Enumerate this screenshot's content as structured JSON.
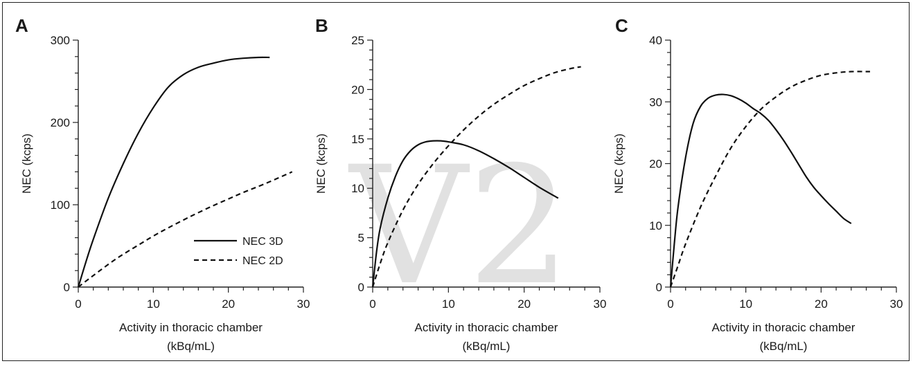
{
  "watermark": "V2",
  "legend": {
    "items": [
      {
        "label": "NEC 3D",
        "style": "solid"
      },
      {
        "label": "NEC 2D",
        "style": "dashed"
      }
    ]
  },
  "chart_data": [
    {
      "type": "line",
      "panel_label": "A",
      "xlabel": "Activity in thoracic chamber",
      "xlabel_unit": "(kBq/mL)",
      "ylabel": "NEC (kcps)",
      "xlim": [
        0,
        30
      ],
      "ylim": [
        0,
        300
      ],
      "x_ticks": [
        0,
        10,
        20,
        30
      ],
      "y_ticks": [
        0,
        100,
        200,
        300
      ],
      "legend": "right",
      "series": [
        {
          "name": "NEC 3D",
          "style": "solid",
          "x": [
            0,
            1,
            2,
            4,
            6,
            8,
            10,
            12,
            14,
            16,
            18,
            20,
            22,
            24,
            25.5
          ],
          "y": [
            0,
            30,
            58,
            108,
            150,
            187,
            218,
            243,
            258,
            267,
            272,
            276,
            278,
            279,
            279
          ]
        },
        {
          "name": "NEC 2D",
          "style": "dashed",
          "x": [
            0,
            2,
            5,
            8,
            10,
            12,
            15,
            18,
            20,
            22,
            25,
            28.5
          ],
          "y": [
            0,
            14,
            34,
            51,
            62,
            72,
            86,
            99,
            107,
            115,
            126,
            140
          ]
        }
      ]
    },
    {
      "type": "line",
      "panel_label": "B",
      "xlabel": "Activity in thoracic chamber",
      "xlabel_unit": "(kBq/mL)",
      "ylabel": "NEC (kcps)",
      "xlim": [
        0,
        30
      ],
      "ylim": [
        0,
        25
      ],
      "x_ticks": [
        0,
        10,
        20,
        30
      ],
      "y_ticks": [
        0,
        5,
        10,
        15,
        20,
        25
      ],
      "series": [
        {
          "name": "NEC 3D",
          "style": "solid",
          "x": [
            0,
            0.5,
            1,
            2,
            3,
            4,
            5,
            6,
            7,
            8,
            9,
            10,
            12,
            14,
            16,
            18,
            20,
            22,
            24.5
          ],
          "y": [
            0,
            3.5,
            6,
            9,
            11.2,
            12.8,
            13.8,
            14.4,
            14.7,
            14.8,
            14.8,
            14.7,
            14.4,
            13.8,
            13.0,
            12.1,
            11.1,
            10.1,
            9.0
          ]
        },
        {
          "name": "NEC 2D",
          "style": "dashed",
          "x": [
            0,
            1,
            2,
            4,
            6,
            8,
            10,
            12,
            14,
            16,
            18,
            20,
            22,
            24,
            26,
            27.5
          ],
          "y": [
            0,
            2.4,
            4.5,
            7.8,
            10.4,
            12.5,
            14.3,
            15.9,
            17.3,
            18.5,
            19.5,
            20.4,
            21.1,
            21.7,
            22.1,
            22.3
          ]
        }
      ]
    },
    {
      "type": "line",
      "panel_label": "C",
      "xlabel": "Activity in thoracic chamber",
      "xlabel_unit": "(kBq/mL)",
      "ylabel": "NEC (kcps)",
      "xlim": [
        0,
        30
      ],
      "ylim": [
        0,
        40
      ],
      "x_ticks": [
        0,
        10,
        20,
        30
      ],
      "y_ticks": [
        0,
        10,
        20,
        30,
        40
      ],
      "series": [
        {
          "name": "NEC 3D",
          "style": "solid",
          "x": [
            0,
            0.5,
            1,
            2,
            3,
            4,
            5,
            6,
            7,
            8,
            9,
            10,
            11,
            12,
            13,
            14,
            15,
            16,
            17,
            18,
            19,
            20,
            21,
            22,
            23,
            24
          ],
          "y": [
            0,
            7,
            13,
            21,
            26.5,
            29.3,
            30.6,
            31.1,
            31.2,
            31.0,
            30.5,
            29.8,
            28.9,
            28.1,
            27.0,
            25.5,
            23.8,
            21.9,
            19.9,
            17.9,
            16.2,
            14.8,
            13.5,
            12.3,
            11.1,
            10.3
          ]
        },
        {
          "name": "NEC 2D",
          "style": "dashed",
          "x": [
            0,
            1,
            2,
            4,
            6,
            8,
            10,
            12,
            14,
            16,
            18,
            20,
            22,
            24,
            26.5
          ],
          "y": [
            0,
            3.5,
            7,
            13,
            18,
            22.5,
            26,
            28.8,
            30.8,
            32.4,
            33.5,
            34.3,
            34.7,
            34.9,
            34.9
          ]
        }
      ]
    }
  ]
}
